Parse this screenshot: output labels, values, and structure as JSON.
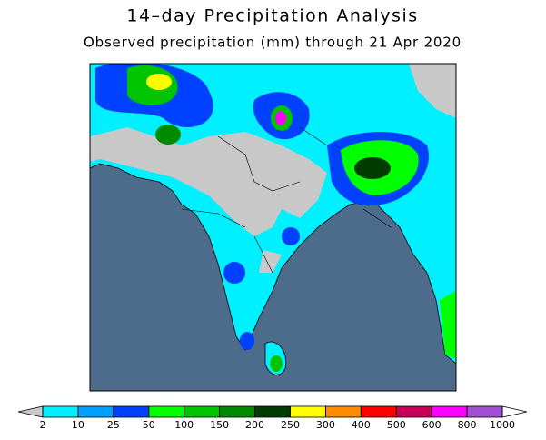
{
  "header": {
    "title": "14–day Precipitation Analysis",
    "subtitle": "Observed precipitation (mm) through 21 Apr 2020"
  },
  "colorbar": {
    "levels": [
      2,
      10,
      25,
      50,
      100,
      150,
      200,
      250,
      300,
      400,
      500,
      600,
      800,
      1000
    ],
    "colors": [
      "#00f0ff",
      "#00a0ff",
      "#0040ff",
      "#00ff00",
      "#00c400",
      "#008a00",
      "#003c00",
      "#ffff00",
      "#ff8c00",
      "#ff0000",
      "#c8005a",
      "#ff00ff",
      "#a050d0"
    ],
    "under_color": "#c8c8c8",
    "over_color": "#ffffff"
  }
}
